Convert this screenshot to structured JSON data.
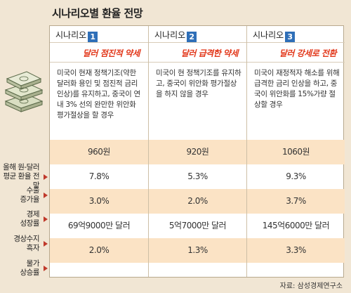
{
  "title": "시나리오별 환율 전망",
  "icon": "money-stack-icon",
  "accent_color": "#e2381b",
  "badge_color": "#2f6fb8",
  "row_labels": [
    "올해 원-달러\n평균 환율 전망",
    "수출\n증가율",
    "경제\n성장률",
    "경상수지\n흑자",
    "물가\n상승률"
  ],
  "scenarios": [
    {
      "head": "시나리오",
      "num": "1",
      "subtitle": "달러 점진적 약세",
      "desc": "미국이 현재 정책기조(약한 달러화 용인 및 점진적 금리 인상)를 유지하고, 중국이 연내 3% 선의 완만한 위안화 평가절상을 할 경우",
      "values": [
        "960원",
        "7.8%",
        "3.0%",
        "69억9000만 달러",
        "2.0%"
      ]
    },
    {
      "head": "시나리오",
      "num": "2",
      "subtitle": "달러 급격한 약세",
      "desc": "미국이 현 정책기조를 유지하고, 중국이 위안화 평가절상을 하지 않을 경우",
      "values": [
        "920원",
        "5.3%",
        "2.0%",
        "5억7000만 달러",
        "1.3%"
      ]
    },
    {
      "head": "시나리오",
      "num": "3",
      "subtitle": "달러 강세로 전환",
      "desc": "미국이 재정적자 해소를 위해 급격한 금리 인상을 하고, 중국이 위안화를 15%가량 절상할 경우",
      "values": [
        "1060원",
        "9.3%",
        "3.7%",
        "145억6000만 달러",
        "3.3%"
      ]
    }
  ],
  "source": "자료: 삼성경제연구소"
}
